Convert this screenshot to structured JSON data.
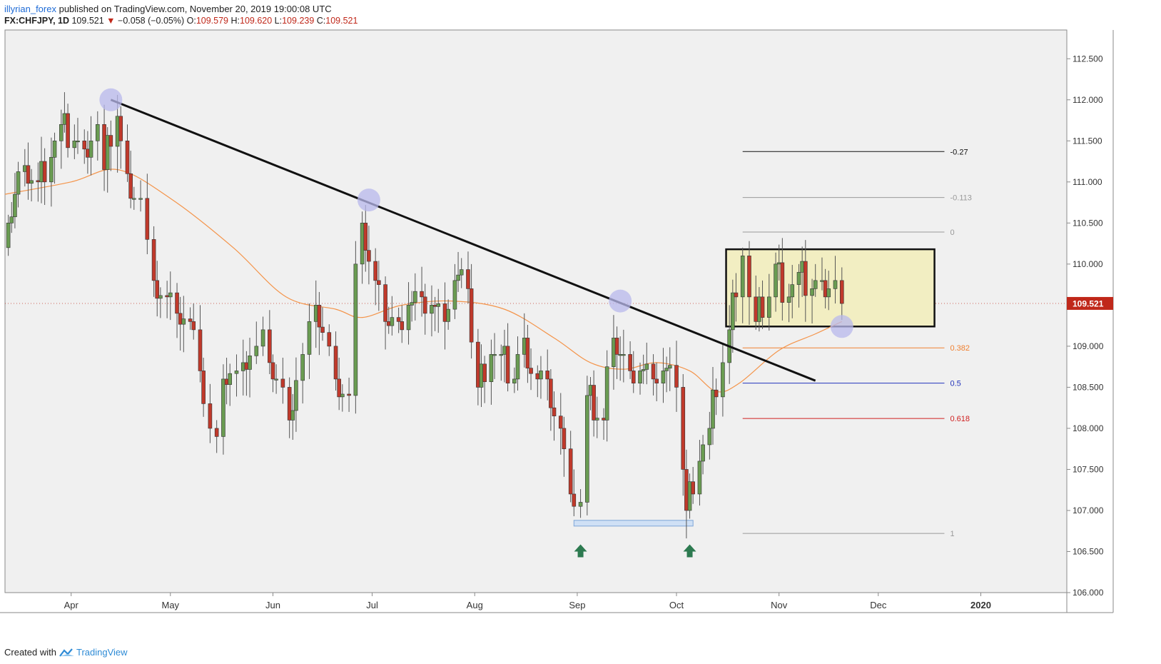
{
  "header": {
    "author": "illyrian_forex",
    "published": " published on TradingView.com, November 20, 2019 19:00:08 UTC",
    "symbol": "FX:CHFJPY, 1D",
    "last": "109.521",
    "change_arrow": "▼",
    "change": "−0.058 (−0.05%)",
    "o_label": "O:",
    "o": "109.579",
    "h_label": "H:",
    "h": "109.620",
    "l_label": "L:",
    "l": "109.239",
    "c_label": "C:",
    "c": "109.521"
  },
  "footer": {
    "created_with": "Created with",
    "brand": "TradingView"
  },
  "colors": {
    "up": "#6a9c52",
    "down": "#c0392b",
    "ma": "#f4944a",
    "trendline": "#111111",
    "bg": "#f0f0f0",
    "price_tag": "#c0281a",
    "circle": "#b8b8ec",
    "box_fill": "#f2eec2",
    "fib_0382": "#f08030",
    "fib_05": "#2233bb",
    "fib_0618": "#d02020",
    "fib_top": "#111111",
    "fib_grey": "#999999",
    "support_zone": "#cfe0f5",
    "arrow": "#2d7a50"
  },
  "chart_data": {
    "type": "candlestick",
    "symbol": "FX:CHFJPY",
    "timeframe": "1D",
    "ylim": [
      106.0,
      112.85
    ],
    "yticks": [
      "106.000",
      "106.500",
      "107.000",
      "107.500",
      "108.000",
      "108.500",
      "109.000",
      "109.500",
      "110.000",
      "110.500",
      "111.000",
      "111.500",
      "112.000",
      "112.500"
    ],
    "xticks": [
      {
        "label": "Apr",
        "date": "2019-04-01"
      },
      {
        "label": "May",
        "date": "2019-05-01"
      },
      {
        "label": "Jun",
        "date": "2019-06-01"
      },
      {
        "label": "Jul",
        "date": "2019-07-01"
      },
      {
        "label": "Aug",
        "date": "2019-08-01"
      },
      {
        "label": "Sep",
        "date": "2019-09-01"
      },
      {
        "label": "Oct",
        "date": "2019-10-01"
      },
      {
        "label": "Nov",
        "date": "2019-11-01"
      },
      {
        "label": "Dec",
        "date": "2019-12-01"
      },
      {
        "label": "2020",
        "date": "2020-01-01"
      }
    ],
    "xrange": [
      "2019-03-12",
      "2020-01-27"
    ],
    "current_price": "109.521",
    "closes": [
      {
        "date": "2019-03-13",
        "c": 110.5
      },
      {
        "date": "2019-03-18",
        "c": 111.2
      },
      {
        "date": "2019-03-22",
        "c": 111.0
      },
      {
        "date": "2019-03-26",
        "c": 111.3
      },
      {
        "date": "2019-03-29",
        "c": 111.7
      },
      {
        "date": "2019-04-02",
        "c": 111.5
      },
      {
        "date": "2019-04-05",
        "c": 111.4
      },
      {
        "date": "2019-04-09",
        "c": 111.7
      },
      {
        "date": "2019-04-11",
        "c": 111.15
      },
      {
        "date": "2019-04-15",
        "c": 111.8
      },
      {
        "date": "2019-04-18",
        "c": 111.1
      },
      {
        "date": "2019-04-22",
        "c": 110.8
      },
      {
        "date": "2019-04-24",
        "c": 110.3
      },
      {
        "date": "2019-04-26",
        "c": 109.8
      },
      {
        "date": "2019-04-30",
        "c": 109.6
      },
      {
        "date": "2019-05-03",
        "c": 109.4
      },
      {
        "date": "2019-05-07",
        "c": 109.3
      },
      {
        "date": "2019-05-10",
        "c": 108.7
      },
      {
        "date": "2019-05-13",
        "c": 108.0
      },
      {
        "date": "2019-05-15",
        "c": 107.9
      },
      {
        "date": "2019-05-17",
        "c": 108.6
      },
      {
        "date": "2019-05-21",
        "c": 108.7
      },
      {
        "date": "2019-05-23",
        "c": 108.8
      },
      {
        "date": "2019-05-27",
        "c": 109.0
      },
      {
        "date": "2019-05-29",
        "c": 109.2
      },
      {
        "date": "2019-05-31",
        "c": 108.8
      },
      {
        "date": "2019-06-04",
        "c": 108.5
      },
      {
        "date": "2019-06-06",
        "c": 108.1
      },
      {
        "date": "2019-06-10",
        "c": 108.9
      },
      {
        "date": "2019-06-12",
        "c": 109.3
      },
      {
        "date": "2019-06-14",
        "c": 109.5
      },
      {
        "date": "2019-06-18",
        "c": 109.0
      },
      {
        "date": "2019-06-20",
        "c": 108.6
      },
      {
        "date": "2019-06-24",
        "c": 108.4
      },
      {
        "date": "2019-06-26",
        "c": 110.0
      },
      {
        "date": "2019-06-28",
        "c": 110.5
      },
      {
        "date": "2019-07-02",
        "c": 109.8
      },
      {
        "date": "2019-07-05",
        "c": 109.3
      },
      {
        "date": "2019-07-09",
        "c": 109.3
      },
      {
        "date": "2019-07-12",
        "c": 109.5
      },
      {
        "date": "2019-07-16",
        "c": 109.6
      },
      {
        "date": "2019-07-19",
        "c": 109.5
      },
      {
        "date": "2019-07-23",
        "c": 109.3
      },
      {
        "date": "2019-07-26",
        "c": 109.8
      },
      {
        "date": "2019-07-30",
        "c": 109.7
      },
      {
        "date": "2019-08-02",
        "c": 108.5
      },
      {
        "date": "2019-08-06",
        "c": 108.9
      },
      {
        "date": "2019-08-09",
        "c": 108.9
      },
      {
        "date": "2019-08-13",
        "c": 108.6
      },
      {
        "date": "2019-08-16",
        "c": 109.1
      },
      {
        "date": "2019-08-20",
        "c": 108.6
      },
      {
        "date": "2019-08-23",
        "c": 108.6
      },
      {
        "date": "2019-08-27",
        "c": 108.0
      },
      {
        "date": "2019-08-30",
        "c": 107.2
      },
      {
        "date": "2019-09-02",
        "c": 107.1
      },
      {
        "date": "2019-09-04",
        "c": 108.4
      },
      {
        "date": "2019-09-09",
        "c": 108.1
      },
      {
        "date": "2019-09-12",
        "c": 109.1
      },
      {
        "date": "2019-09-17",
        "c": 108.7
      },
      {
        "date": "2019-09-20",
        "c": 108.7
      },
      {
        "date": "2019-09-24",
        "c": 108.6
      },
      {
        "date": "2019-09-27",
        "c": 108.7
      },
      {
        "date": "2019-10-01",
        "c": 108.5
      },
      {
        "date": "2019-10-03",
        "c": 107.5
      },
      {
        "date": "2019-10-04",
        "c": 107.0
      },
      {
        "date": "2019-10-08",
        "c": 107.6
      },
      {
        "date": "2019-10-11",
        "c": 108.0
      },
      {
        "date": "2019-10-15",
        "c": 108.8
      },
      {
        "date": "2019-10-17",
        "c": 109.2
      },
      {
        "date": "2019-10-21",
        "c": 110.1
      },
      {
        "date": "2019-10-23",
        "c": 109.6
      },
      {
        "date": "2019-10-25",
        "c": 109.3
      },
      {
        "date": "2019-10-29",
        "c": 109.6
      },
      {
        "date": "2019-10-31",
        "c": 110.0
      },
      {
        "date": "2019-11-04",
        "c": 109.6
      },
      {
        "date": "2019-11-07",
        "c": 109.9
      },
      {
        "date": "2019-11-11",
        "c": 109.7
      },
      {
        "date": "2019-11-14",
        "c": 109.8
      },
      {
        "date": "2019-11-18",
        "c": 109.8
      },
      {
        "date": "2019-11-20",
        "c": 109.52
      }
    ],
    "moving_average": [
      {
        "date": "2019-03-12",
        "v": 110.85
      },
      {
        "date": "2019-04-01",
        "v": 111.0
      },
      {
        "date": "2019-04-15",
        "v": 111.15
      },
      {
        "date": "2019-05-01",
        "v": 110.8
      },
      {
        "date": "2019-05-20",
        "v": 110.2
      },
      {
        "date": "2019-06-05",
        "v": 109.6
      },
      {
        "date": "2019-06-20",
        "v": 109.45
      },
      {
        "date": "2019-06-28",
        "v": 109.35
      },
      {
        "date": "2019-07-10",
        "v": 109.5
      },
      {
        "date": "2019-07-25",
        "v": 109.55
      },
      {
        "date": "2019-08-10",
        "v": 109.45
      },
      {
        "date": "2019-08-25",
        "v": 109.1
      },
      {
        "date": "2019-09-05",
        "v": 108.8
      },
      {
        "date": "2019-09-15",
        "v": 108.72
      },
      {
        "date": "2019-09-25",
        "v": 108.8
      },
      {
        "date": "2019-10-05",
        "v": 108.7
      },
      {
        "date": "2019-10-13",
        "v": 108.45
      },
      {
        "date": "2019-10-20",
        "v": 108.55
      },
      {
        "date": "2019-11-01",
        "v": 108.95
      },
      {
        "date": "2019-11-12",
        "v": 109.15
      },
      {
        "date": "2019-11-20",
        "v": 109.3
      }
    ],
    "trendline": {
      "from": {
        "date": "2019-04-13",
        "price": 112.0
      },
      "to": {
        "date": "2019-11-12",
        "price": 108.58
      }
    },
    "touch_points": [
      {
        "date": "2019-04-13",
        "price": 112.0
      },
      {
        "date": "2019-06-30",
        "price": 110.78
      },
      {
        "date": "2019-09-14",
        "price": 109.55
      },
      {
        "date": "2019-11-20",
        "price": 109.24
      }
    ],
    "consolidation_box": {
      "from": "2019-10-16",
      "to": "2019-12-18",
      "top": 110.18,
      "bottom": 109.24
    },
    "support_zone": {
      "from": "2019-08-31",
      "to": "2019-10-06",
      "top": 106.88,
      "bottom": 106.81
    },
    "arrows": [
      {
        "date": "2019-09-02",
        "price": 106.5
      },
      {
        "date": "2019-10-05",
        "price": 106.5
      }
    ],
    "fibonacci": {
      "from": "2019-10-21",
      "to": "2019-12-21",
      "levels": [
        {
          "label": "-0.27",
          "price": 111.37
        },
        {
          "label": "-0.113",
          "price": 110.81
        },
        {
          "label": "0",
          "price": 110.39
        },
        {
          "label": "0.382",
          "price": 108.98
        },
        {
          "label": "0.5",
          "price": 108.55
        },
        {
          "label": "0.618",
          "price": 108.12
        },
        {
          "label": "1",
          "price": 106.72
        }
      ]
    }
  }
}
